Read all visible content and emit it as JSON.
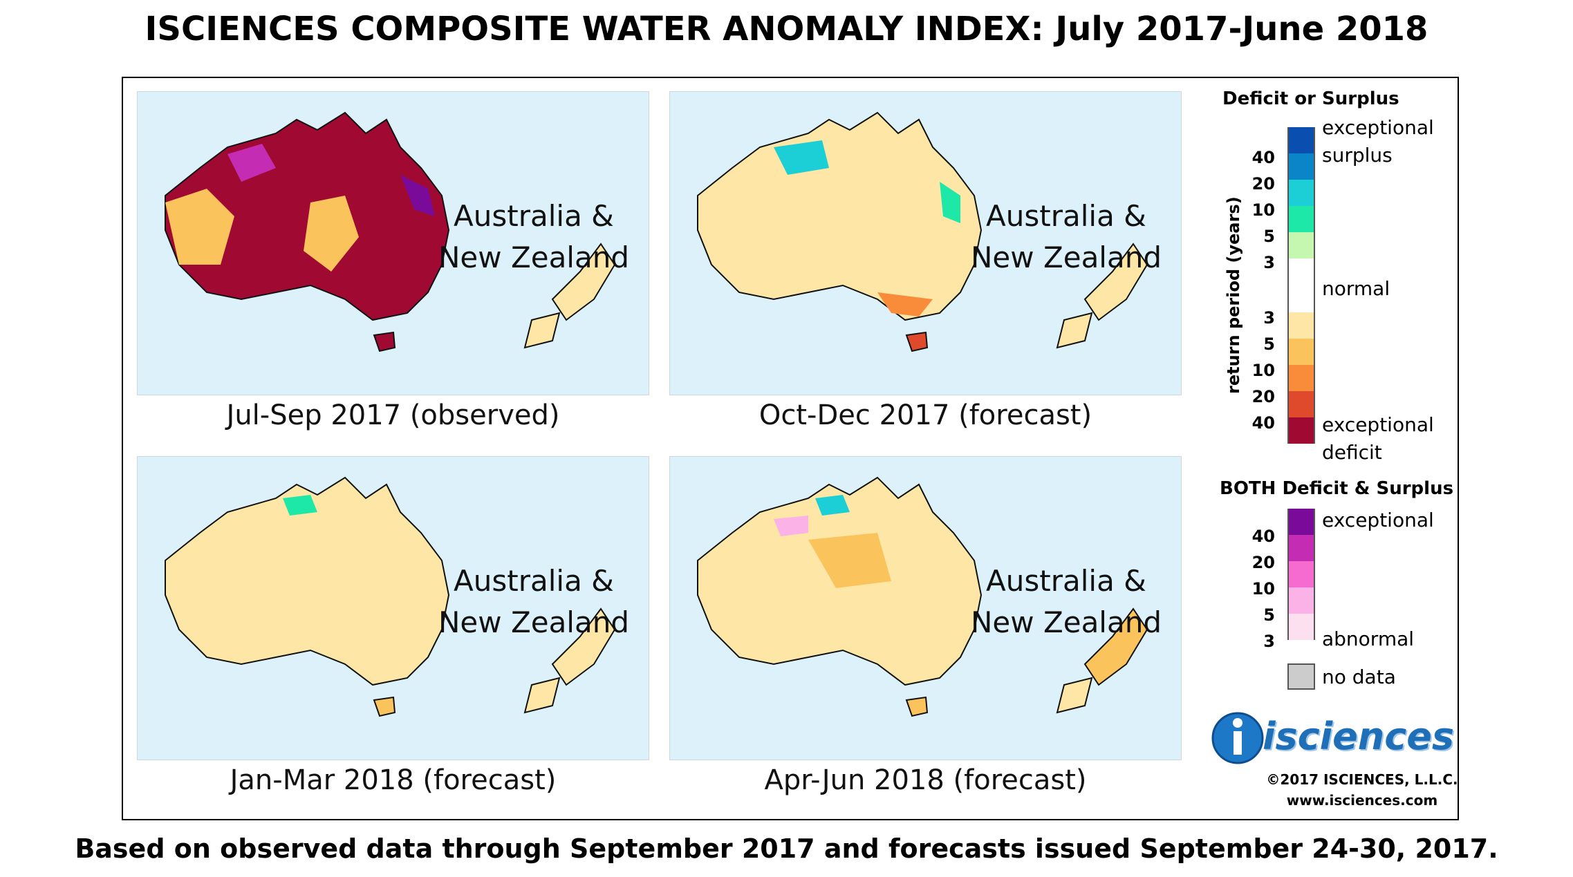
{
  "title": "ISCIENCES COMPOSITE WATER ANOMALY INDEX: July 2017-June 2018",
  "footnote": "Based on observed data through September 2017 and forecasts issued September 24-30, 2017.",
  "panels": [
    {
      "region_line1": "Australia &",
      "region_line2": "New Zealand",
      "caption": "Jul-Sep 2017 (observed)"
    },
    {
      "region_line1": "Australia &",
      "region_line2": "New Zealand",
      "caption": "Oct-Dec 2017 (forecast)"
    },
    {
      "region_line1": "Australia &",
      "region_line2": "New Zealand",
      "caption": "Jan-Mar 2018 (forecast)"
    },
    {
      "region_line1": "Australia &",
      "region_line2": "New Zealand",
      "caption": "Apr-Jun 2018 (forecast)"
    }
  ],
  "legend": {
    "deficit_surplus_title": "Deficit or Surplus",
    "axis_label": "return period (years)",
    "exceptional_surplus_1": "exceptional",
    "exceptional_surplus_2": "surplus",
    "normal": "normal",
    "exceptional_deficit_1": "exceptional",
    "exceptional_deficit_2": "deficit",
    "surplus_ticks": [
      "40",
      "20",
      "10",
      "5",
      "3"
    ],
    "deficit_ticks": [
      "3",
      "5",
      "10",
      "20",
      "40"
    ],
    "surplus_colors": [
      "#0a4fb0",
      "#0a86c8",
      "#1ccfd6",
      "#1ee8a8",
      "#c6f7b0"
    ],
    "normal_color": "#ffffff",
    "deficit_colors": [
      "#fde6a6",
      "#fbc35c",
      "#f98c3a",
      "#de4a2b",
      "#a00a32"
    ],
    "both_title": "BOTH Deficit & Surplus",
    "both_ticks": [
      "40",
      "20",
      "10",
      "5",
      "3"
    ],
    "both_exceptional": "exceptional",
    "both_abnormal": "abnormal",
    "both_colors": [
      "#7a0a9a",
      "#c42cb4",
      "#f56bd0",
      "#fbb2e6",
      "#fde0f0"
    ],
    "no_data": "no data",
    "no_data_color": "#cccccc"
  },
  "logo_text": "isciences",
  "copyright": "©2017 ISCIENCES, L.L.C.",
  "website": "www.isciences.com"
}
